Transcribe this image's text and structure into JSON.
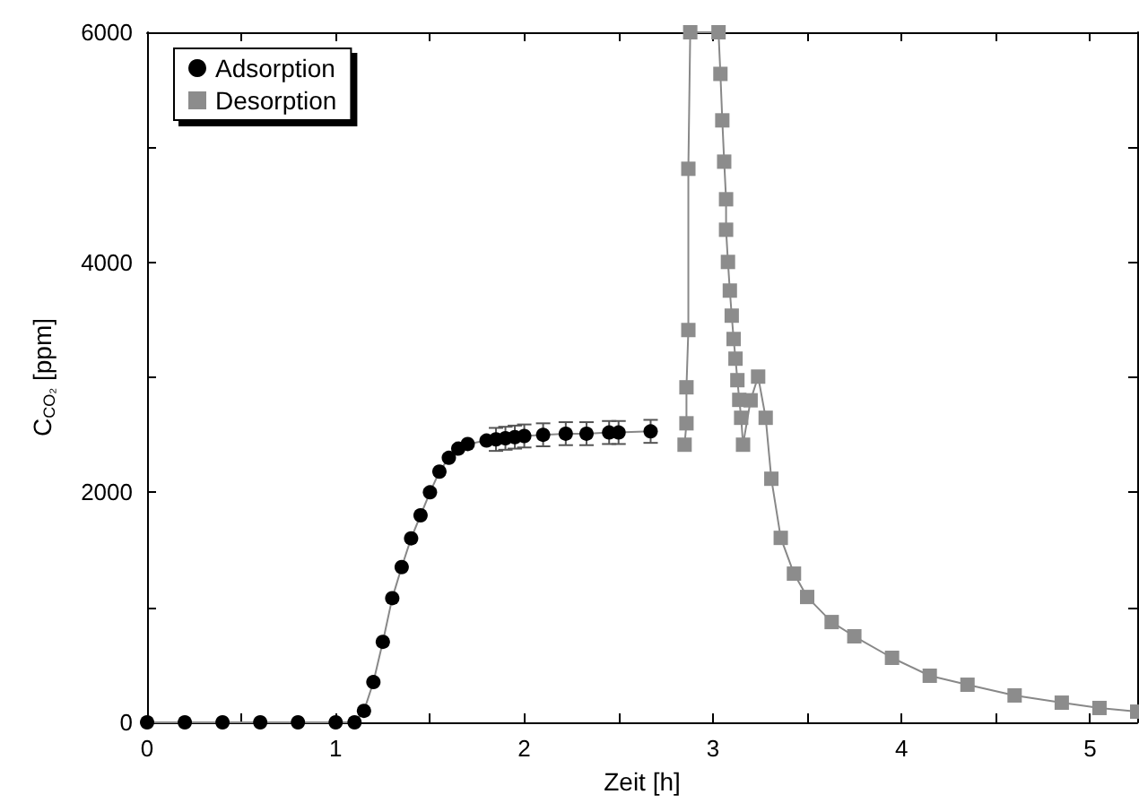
{
  "chart_data": {
    "type": "line",
    "xlabel": "Zeit [h]",
    "ylabel": "C$_{CO₂}$ [ppm]",
    "xlim": [
      0,
      5.25
    ],
    "ylim": [
      0,
      6000
    ],
    "xticks": [
      0,
      {
        "value": 0.5,
        "label": null
      },
      1,
      {
        "value": 1.5,
        "label": null
      },
      2,
      {
        "value": 2.5,
        "label": null
      },
      3,
      {
        "value": 3.5,
        "label": null
      },
      4,
      {
        "value": 4.5,
        "label": null
      },
      5
    ],
    "yticks": [
      0,
      {
        "value": 1000,
        "label": null
      },
      2000,
      {
        "value": 3000,
        "label": null
      },
      4000,
      {
        "value": 5000,
        "label": null
      },
      6000
    ],
    "grid": false,
    "legend": "top left",
    "line_style": "solid",
    "series": [
      {
        "name": "Adsorption",
        "color": "#000000",
        "marker": "circle",
        "x": [
          0,
          0.2,
          0.4,
          0.6,
          0.8,
          1.0,
          1.1,
          1.15,
          1.2,
          1.25,
          1.3,
          1.35,
          1.4,
          1.45,
          1.5,
          1.55,
          1.6,
          1.65,
          1.7,
          1.8,
          1.85,
          1.9,
          1.95,
          2.0,
          2.1,
          2.22,
          2.33,
          2.45,
          2.5,
          2.67
        ],
        "values": [
          0,
          0,
          0,
          0,
          0,
          0,
          0,
          100,
          350,
          700,
          1080,
          1350,
          1600,
          1800,
          2000,
          2180,
          2300,
          2380,
          2420,
          2450,
          2460,
          2470,
          2480,
          2490,
          2500,
          2510,
          2510,
          2520,
          2520,
          2530
        ],
        "errors": [
          null,
          null,
          null,
          null,
          null,
          null,
          null,
          null,
          null,
          null,
          null,
          null,
          null,
          null,
          null,
          null,
          null,
          null,
          null,
          null,
          100,
          100,
          100,
          100,
          100,
          100,
          100,
          100,
          100,
          100
        ]
      },
      {
        "name": "Desorption",
        "color": "#8c8c8c",
        "marker": "square",
        "x": [
          2.85,
          2.86,
          2.86,
          2.87,
          2.87,
          2.88,
          3.03,
          3.04,
          3.05,
          3.06,
          3.07,
          3.07,
          3.08,
          3.09,
          3.1,
          3.11,
          3.12,
          3.13,
          3.14,
          3.15,
          3.16,
          3.2,
          3.24,
          3.28,
          3.31,
          3.36,
          3.43,
          3.5,
          3.63,
          3.75,
          3.95,
          4.15,
          4.35,
          4.6,
          4.85,
          5.05,
          5.25
        ],
        "values": [
          2414,
          2600,
          2913,
          3411,
          4813,
          6000,
          6000,
          5638,
          5234,
          4875,
          4548,
          4283,
          4003,
          3754,
          3536,
          3333,
          3162,
          2975,
          2804,
          2648,
          2414,
          2800,
          3006,
          2648,
          2118,
          1604,
          1293,
          1090,
          872,
          748,
          561,
          405,
          327,
          234,
          171,
          125,
          93
        ]
      }
    ]
  }
}
